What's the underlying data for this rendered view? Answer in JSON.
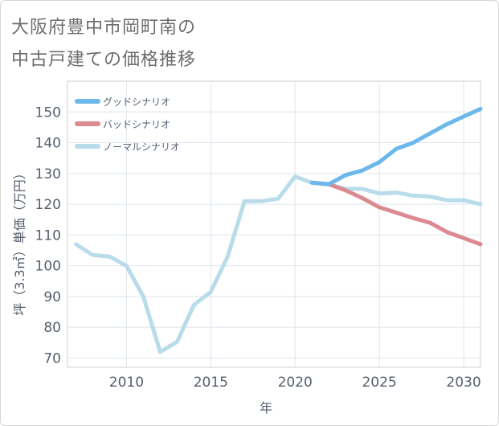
{
  "chart_data": {
    "type": "line",
    "title_line1": "大阪府豊中市岡町南の",
    "title_line2": "中古戸建ての価格推移",
    "xlabel": "年",
    "ylabel": "坪（3.3㎡）単価（万円）",
    "xlim": [
      2006.5,
      2031
    ],
    "ylim": [
      67,
      160
    ],
    "x_ticks": [
      2010,
      2015,
      2020,
      2025,
      2030
    ],
    "y_ticks": [
      70,
      80,
      90,
      100,
      110,
      120,
      130,
      140,
      150
    ],
    "grid": true,
    "legend_position": "top-left",
    "series": [
      {
        "name": "グッドシナリオ",
        "color": "#6cb8ea",
        "x": [
          2021,
          2022,
          2023,
          2024,
          2025,
          2026,
          2027,
          2028,
          2029,
          2030,
          2031
        ],
        "y": [
          127,
          126.5,
          129.5,
          131,
          133.7,
          138,
          140,
          143,
          146,
          148.5,
          151
        ]
      },
      {
        "name": "バッドシナリオ",
        "color": "#dc8a92",
        "x": [
          2021,
          2022,
          2023,
          2024,
          2025,
          2026,
          2027,
          2028,
          2029,
          2030,
          2031
        ],
        "y": [
          127,
          126.5,
          124.5,
          122,
          119,
          117.3,
          115.5,
          114,
          111,
          109,
          107
        ]
      },
      {
        "name": "ノーマルシナリオ",
        "color": "#b9dceb",
        "x": [
          2007,
          2008,
          2009,
          2010,
          2011,
          2012,
          2013,
          2014,
          2015,
          2016,
          2017,
          2018,
          2019,
          2020,
          2021,
          2022,
          2023,
          2024,
          2025,
          2026,
          2027,
          2028,
          2029,
          2030,
          2031
        ],
        "y": [
          107,
          103.5,
          103,
          100,
          90,
          72,
          75.3,
          87.3,
          91.5,
          103,
          121,
          121,
          121.8,
          129,
          127,
          126.5,
          125,
          125,
          123.5,
          123.8,
          122.8,
          122.5,
          121.3,
          121.3,
          120
        ]
      }
    ]
  }
}
